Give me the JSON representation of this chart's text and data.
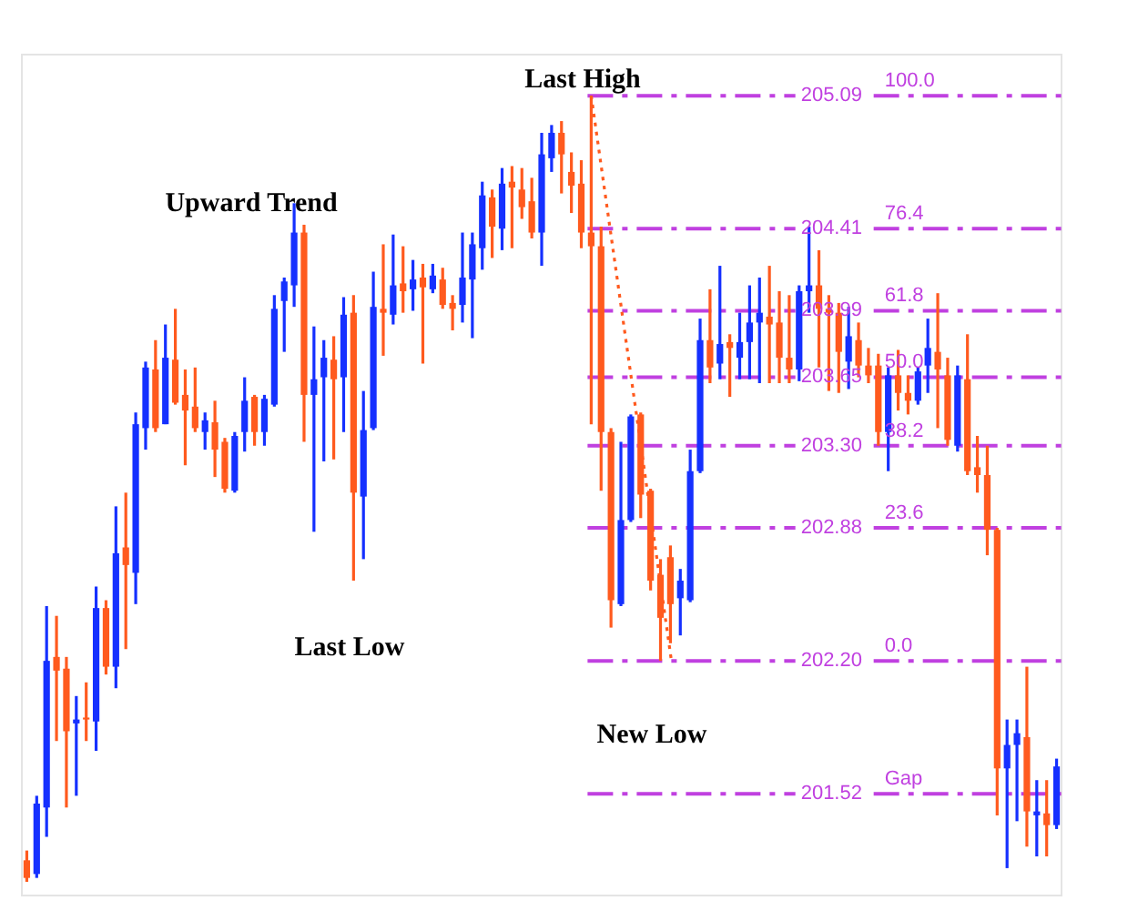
{
  "chart_data": {
    "type": "candlestick",
    "categories": [
      null,
      null,
      null,
      null,
      null,
      null,
      null,
      null,
      null,
      null,
      null,
      null,
      null,
      null,
      null,
      null,
      null,
      null,
      null,
      null,
      null,
      null,
      null,
      null,
      null,
      null,
      null,
      null,
      null,
      null,
      null,
      null,
      null,
      null,
      null,
      null,
      null,
      null,
      null,
      null,
      null,
      null,
      null,
      null,
      null,
      null,
      null,
      null,
      null,
      null,
      null,
      null,
      null,
      null,
      null,
      null,
      null,
      null,
      null,
      null,
      null,
      null,
      null,
      null,
      null,
      null,
      null,
      null,
      null,
      null,
      null,
      null,
      null,
      null,
      null,
      null,
      null,
      null,
      null,
      null,
      null,
      null,
      null,
      null,
      null,
      null,
      null,
      null,
      null,
      null,
      null,
      null,
      null,
      null,
      null,
      null,
      null,
      null,
      null,
      null,
      null,
      null,
      null,
      null,
      null
    ],
    "ohlc": [
      [
        201.18,
        201.23,
        201.07,
        201.09
      ],
      [
        201.11,
        201.51,
        201.09,
        201.47
      ],
      [
        201.45,
        202.48,
        201.3,
        202.2
      ],
      [
        202.22,
        202.43,
        201.79,
        202.15
      ],
      [
        202.16,
        202.22,
        201.45,
        201.84
      ],
      [
        201.88,
        202.02,
        201.51,
        201.9
      ],
      [
        201.91,
        202.09,
        201.79,
        201.9
      ],
      [
        201.89,
        202.58,
        201.74,
        202.47
      ],
      [
        202.47,
        202.51,
        202.13,
        202.17
      ],
      [
        202.17,
        202.99,
        202.06,
        202.75
      ],
      [
        202.78,
        203.06,
        202.26,
        202.69
      ],
      [
        202.65,
        203.47,
        202.49,
        203.41
      ],
      [
        203.39,
        203.73,
        203.28,
        203.7
      ],
      [
        203.69,
        203.84,
        203.37,
        203.39
      ],
      [
        203.41,
        203.92,
        203.41,
        203.75
      ],
      [
        203.74,
        204.0,
        203.51,
        203.52
      ],
      [
        203.56,
        203.69,
        203.2,
        203.48
      ],
      [
        203.5,
        203.7,
        203.37,
        203.39
      ],
      [
        203.37,
        203.47,
        203.28,
        203.43
      ],
      [
        203.42,
        203.53,
        203.14,
        203.28
      ],
      [
        203.32,
        203.34,
        203.06,
        203.08
      ],
      [
        203.07,
        203.37,
        203.06,
        203.35
      ],
      [
        203.37,
        203.65,
        203.27,
        203.53
      ],
      [
        203.55,
        203.56,
        203.3,
        203.37
      ],
      [
        203.37,
        203.56,
        203.3,
        203.54
      ],
      [
        203.51,
        204.07,
        203.5,
        204.0
      ],
      [
        204.04,
        204.16,
        203.78,
        204.14
      ],
      [
        204.12,
        204.54,
        204.01,
        204.39
      ],
      [
        204.39,
        204.43,
        203.32,
        203.56
      ],
      [
        203.56,
        203.91,
        202.86,
        203.64
      ],
      [
        203.65,
        203.84,
        203.22,
        203.75
      ],
      [
        203.74,
        203.86,
        203.23,
        203.64
      ],
      [
        203.65,
        204.06,
        203.37,
        203.97
      ],
      [
        203.98,
        204.07,
        202.61,
        203.06
      ],
      [
        203.04,
        203.58,
        202.72,
        203.38
      ],
      [
        203.39,
        204.19,
        203.38,
        204.01
      ],
      [
        204.0,
        204.33,
        203.76,
        203.98
      ],
      [
        203.97,
        204.38,
        203.92,
        204.12
      ],
      [
        204.13,
        204.32,
        203.98,
        204.09
      ],
      [
        204.1,
        204.25,
        203.99,
        204.15
      ],
      [
        204.16,
        204.23,
        203.72,
        204.11
      ],
      [
        204.1,
        204.23,
        204.08,
        204.17
      ],
      [
        204.15,
        204.21,
        204.0,
        204.02
      ],
      [
        204.03,
        204.07,
        203.89,
        204.0
      ],
      [
        204.02,
        204.39,
        203.93,
        204.16
      ],
      [
        204.15,
        204.39,
        203.85,
        204.33
      ],
      [
        204.31,
        204.65,
        204.2,
        204.58
      ],
      [
        204.57,
        204.61,
        204.26,
        204.42
      ],
      [
        204.41,
        204.72,
        204.3,
        204.64
      ],
      [
        204.65,
        204.73,
        204.31,
        204.62
      ],
      [
        204.61,
        204.72,
        204.46,
        204.52
      ],
      [
        204.55,
        204.67,
        204.36,
        204.39
      ],
      [
        204.39,
        204.9,
        204.22,
        204.79
      ],
      [
        204.77,
        204.94,
        204.7,
        204.9
      ],
      [
        204.9,
        204.96,
        204.59,
        204.79
      ],
      [
        204.7,
        204.8,
        204.49,
        204.63
      ],
      [
        204.64,
        204.76,
        204.31,
        204.39
      ],
      [
        204.39,
        205.09,
        203.41,
        204.32
      ],
      [
        204.32,
        204.42,
        203.07,
        203.37
      ],
      [
        203.37,
        203.39,
        202.37,
        202.51
      ],
      [
        202.49,
        203.32,
        202.48,
        202.92
      ],
      [
        202.92,
        203.46,
        202.91,
        203.45
      ],
      [
        203.46,
        203.47,
        202.93,
        203.05
      ],
      [
        203.07,
        203.08,
        202.56,
        202.61
      ],
      [
        202.64,
        202.72,
        202.2,
        202.42
      ],
      [
        202.73,
        202.79,
        202.29,
        202.49
      ],
      [
        202.52,
        202.67,
        202.33,
        202.61
      ],
      [
        202.51,
        203.28,
        202.5,
        203.17
      ],
      [
        203.17,
        203.95,
        203.16,
        203.84
      ],
      [
        203.84,
        204.1,
        203.62,
        203.7
      ],
      [
        203.72,
        204.22,
        203.64,
        203.82
      ],
      [
        203.83,
        203.87,
        203.55,
        203.8
      ],
      [
        203.75,
        203.98,
        203.64,
        203.83
      ],
      [
        203.83,
        204.12,
        203.64,
        203.93
      ],
      [
        203.93,
        204.16,
        203.62,
        203.98
      ],
      [
        203.96,
        204.22,
        203.62,
        203.92
      ],
      [
        203.93,
        204.09,
        203.62,
        203.75
      ],
      [
        203.75,
        204.07,
        203.62,
        203.69
      ],
      [
        203.69,
        204.12,
        203.63,
        204.09
      ],
      [
        204.09,
        204.42,
        203.98,
        204.12
      ],
      [
        204.12,
        204.3,
        203.7,
        204.0
      ],
      [
        204.0,
        204.07,
        203.58,
        203.98
      ],
      [
        203.98,
        204.03,
        203.57,
        203.78
      ],
      [
        203.73,
        204.01,
        203.59,
        203.86
      ],
      [
        203.84,
        203.93,
        203.65,
        203.71
      ],
      [
        203.71,
        203.8,
        203.62,
        203.66
      ],
      [
        203.71,
        203.77,
        203.3,
        203.37
      ],
      [
        203.37,
        203.7,
        203.17,
        203.66
      ],
      [
        203.66,
        203.79,
        203.48,
        203.57
      ],
      [
        203.57,
        203.66,
        203.46,
        203.53
      ],
      [
        203.53,
        203.7,
        203.51,
        203.68
      ],
      [
        203.71,
        203.95,
        203.57,
        203.8
      ],
      [
        203.78,
        204.08,
        203.39,
        203.69
      ],
      [
        203.66,
        203.75,
        203.3,
        203.33
      ],
      [
        203.3,
        203.71,
        203.27,
        203.66
      ],
      [
        203.64,
        203.87,
        203.15,
        203.17
      ],
      [
        203.19,
        203.35,
        203.06,
        203.15
      ],
      [
        203.15,
        203.3,
        202.74,
        202.87
      ],
      [
        202.87,
        202.88,
        201.41,
        201.65
      ],
      [
        201.65,
        201.9,
        201.14,
        201.77
      ],
      [
        201.77,
        201.9,
        201.38,
        201.83
      ],
      [
        201.81,
        202.17,
        201.25,
        201.43
      ],
      [
        201.41,
        201.59,
        201.2,
        201.43
      ],
      [
        201.42,
        201.59,
        201.2,
        201.36
      ],
      [
        201.36,
        201.7,
        201.34,
        201.66
      ]
    ],
    "colors": [
      "#ff5a1e",
      "#1530ff",
      "#1530ff",
      "#ff5a1e",
      "#ff5a1e",
      "#1530ff",
      "#ff5a1e",
      "#1530ff",
      "#ff5a1e",
      "#1530ff",
      "#ff5a1e",
      "#1530ff",
      "#1530ff",
      "#ff5a1e",
      "#1530ff",
      "#ff5a1e",
      "#ff5a1e",
      "#ff5a1e",
      "#1530ff",
      "#ff5a1e",
      "#ff5a1e",
      "#1530ff",
      "#1530ff",
      "#ff5a1e",
      "#1530ff",
      "#1530ff",
      "#1530ff",
      "#1530ff",
      "#ff5a1e",
      "#1530ff",
      "#1530ff",
      "#ff5a1e",
      "#1530ff",
      "#ff5a1e",
      "#1530ff",
      "#1530ff",
      "#ff5a1e",
      "#1530ff",
      "#ff5a1e",
      "#1530ff",
      "#ff5a1e",
      "#1530ff",
      "#ff5a1e",
      "#ff5a1e",
      "#1530ff",
      "#1530ff",
      "#1530ff",
      "#ff5a1e",
      "#1530ff",
      "#ff5a1e",
      "#ff5a1e",
      "#ff5a1e",
      "#1530ff",
      "#1530ff",
      "#ff5a1e",
      "#ff5a1e",
      "#ff5a1e",
      "#ff5a1e",
      "#ff5a1e",
      "#ff5a1e",
      "#1530ff",
      "#1530ff",
      "#ff5a1e",
      "#ff5a1e",
      "#ff5a1e",
      "#ff5a1e",
      "#1530ff",
      "#1530ff",
      "#1530ff",
      "#ff5a1e",
      "#1530ff",
      "#ff5a1e",
      "#1530ff",
      "#1530ff",
      "#1530ff",
      "#ff5a1e",
      "#ff5a1e",
      "#ff5a1e",
      "#1530ff",
      "#1530ff",
      "#ff5a1e",
      "#ff5a1e",
      "#ff5a1e",
      "#1530ff",
      "#ff5a1e",
      "#ff5a1e",
      "#ff5a1e",
      "#1530ff",
      "#ff5a1e",
      "#ff5a1e",
      "#1530ff",
      "#1530ff",
      "#ff5a1e",
      "#ff5a1e",
      "#1530ff",
      "#ff5a1e",
      "#ff5a1e",
      "#ff5a1e",
      "#ff5a1e",
      "#1530ff",
      "#1530ff",
      "#ff5a1e",
      "#1530ff",
      "#ff5a1e",
      "#1530ff"
    ],
    "ylim": [
      201.0,
      205.3
    ],
    "yticks": [
      {
        "value": 205.09,
        "label": "205.09"
      },
      {
        "value": 204.41,
        "label": "204.41"
      },
      {
        "value": 203.99,
        "label": "203.99"
      },
      {
        "value": 203.65,
        "label": "203.65"
      },
      {
        "value": 203.3,
        "label": "203.30"
      },
      {
        "value": 202.88,
        "label": "202.88"
      },
      {
        "value": 202.2,
        "label": "202.20"
      },
      {
        "value": 201.52,
        "label": "201.52"
      }
    ],
    "ref_lines": [
      {
        "axis": "y",
        "value": 205.09,
        "color": "#c040e0",
        "line_style": "dashed"
      },
      {
        "axis": "y",
        "value": 204.41,
        "color": "#c040e0",
        "line_style": "dashed"
      },
      {
        "axis": "y",
        "value": 203.99,
        "color": "#c040e0",
        "line_style": "dashed"
      },
      {
        "axis": "y",
        "value": 203.65,
        "color": "#c040e0",
        "line_style": "dashed"
      },
      {
        "axis": "y",
        "value": 203.3,
        "color": "#c040e0",
        "line_style": "dashed"
      },
      {
        "axis": "y",
        "value": 202.88,
        "color": "#c040e0",
        "line_style": "dashed"
      },
      {
        "axis": "y",
        "value": 202.2,
        "color": "#c040e0",
        "line_style": "dashed"
      },
      {
        "axis": "y",
        "value": 201.52,
        "color": "#c040e0",
        "line_style": "dashed"
      }
    ],
    "annotations": [
      "Upward Trend",
      "Last High",
      "Last Low",
      "New Low",
      {
        "text": "100.0",
        "y": 205.09
      },
      {
        "text": "76.4",
        "y": 204.41
      },
      {
        "text": "61.8",
        "y": 203.99
      },
      {
        "text": "50.0",
        "y": 203.65
      },
      {
        "text": "38.2",
        "y": 203.3
      },
      {
        "text": "23.6",
        "y": 202.88
      },
      {
        "text": "0.0",
        "y": 202.2
      },
      {
        "text": "Gap",
        "y": 201.52
      }
    ]
  }
}
